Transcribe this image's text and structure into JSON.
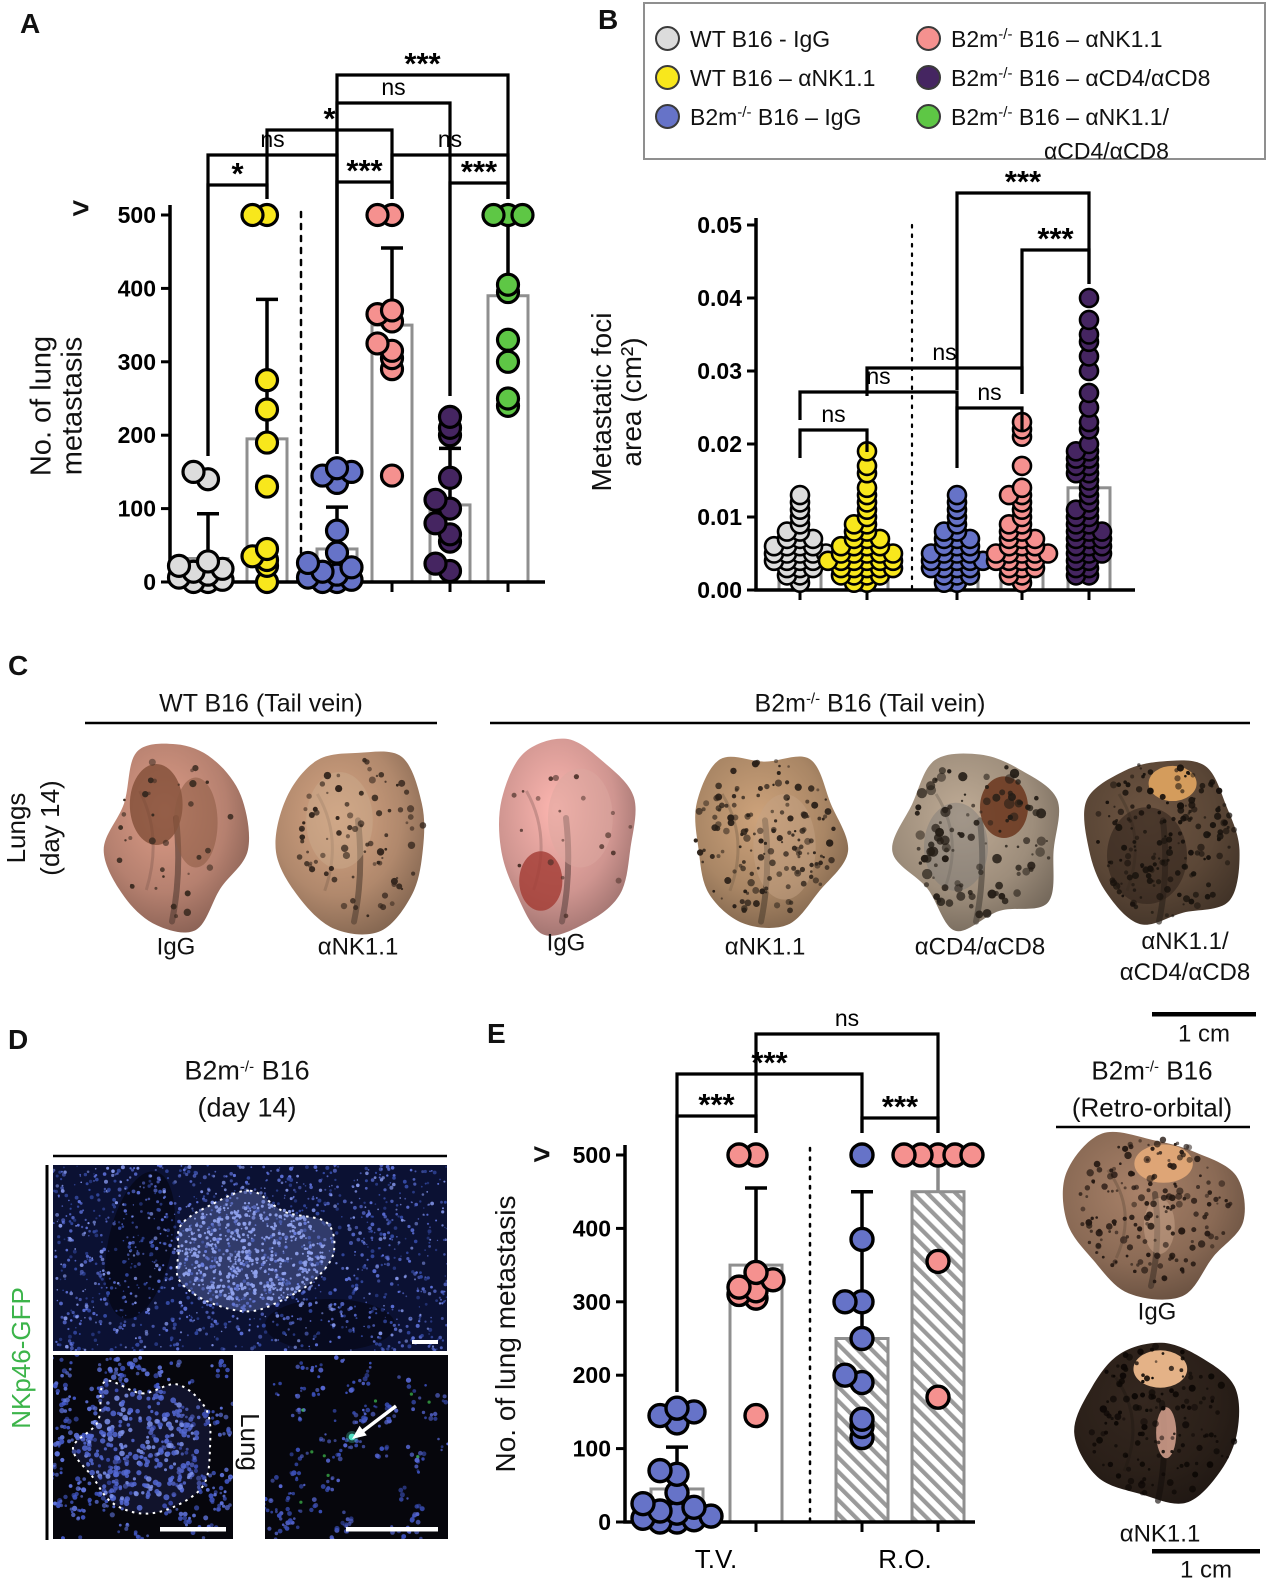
{
  "panels": {
    "a": "A",
    "b": "B",
    "c": "C",
    "d": "D",
    "e": "E"
  },
  "legend": {
    "items": [
      {
        "pre": "WT B16 - IgG",
        "sup": "",
        "post": "",
        "post2": "",
        "color": "#dcdcdc"
      },
      {
        "pre": "WT B16 – αNK1.1",
        "sup": "",
        "post": "",
        "post2": "",
        "color": "#f8e71c"
      },
      {
        "pre": "B2m",
        "sup": "-/-",
        "post": " B16 – IgG",
        "post2": "",
        "color": "#6673c8"
      },
      {
        "pre": "B2m",
        "sup": "-/-",
        "post": " B16 – αNK1.1",
        "post2": "",
        "color": "#f5918f"
      },
      {
        "pre": "B2m",
        "sup": "-/-",
        "post": " B16 – αCD4/αCD8",
        "post2": "",
        "color": "#452561"
      },
      {
        "pre": "B2m",
        "sup": "-/-",
        "post": " B16 – αNK1.1/",
        "post2": "αCD4/αCD8",
        "color": "#5ec745"
      }
    ]
  },
  "chart_data": [
    {
      "id": "A",
      "type": "scatter-bar",
      "ylabel": [
        "No. of lung",
        "metastasis"
      ],
      "over_symbol": ">",
      "ylim": [
        0,
        500
      ],
      "grid": false,
      "yticks": [
        {
          "v": 0,
          "label": "0"
        },
        {
          "v": 100,
          "label": "100"
        },
        {
          "v": 200,
          "label": "200"
        },
        {
          "v": 300,
          "label": "300"
        },
        {
          "v": 400,
          "label": "400"
        },
        {
          "v": 500,
          "label": "500"
        }
      ],
      "groups": [
        {
          "name": "WT B16 - IgG",
          "color": "#dcdcdc",
          "bar": 32,
          "whisker": 93,
          "points": [
            0,
            0,
            3,
            6,
            10,
            14,
            18,
            22,
            28,
            140,
            150
          ]
        },
        {
          "name": "WT B16 – αNK1.1",
          "color": "#f8e71c",
          "bar": 195,
          "whisker": 385,
          "points": [
            0,
            22,
            30,
            35,
            45,
            130,
            190,
            235,
            275,
            500,
            500
          ]
        },
        {
          "name": "B2m-/- B16 – IgG",
          "color": "#6673c8",
          "bar": 45,
          "whisker": 102,
          "points": [
            0,
            0,
            3,
            6,
            10,
            14,
            20,
            26,
            40,
            70,
            135,
            145,
            150,
            155
          ]
        },
        {
          "name": "B2m-/- B16 – αNK1.1",
          "color": "#f5918f",
          "bar": 350,
          "whisker": 455,
          "points": [
            145,
            290,
            305,
            315,
            325,
            355,
            365,
            370,
            500,
            500
          ]
        },
        {
          "name": "B2m-/- B16 – αCD4/αCD8",
          "color": "#452561",
          "bar": 105,
          "whisker": 182,
          "points": [
            15,
            25,
            55,
            65,
            80,
            100,
            112,
            142,
            200,
            210,
            225
          ]
        },
        {
          "name": "B2m-/- B16 – αNK1.1/αCD4/αCD8",
          "color": "#5ec745",
          "bar": 390,
          "whisker": 500,
          "points": [
            240,
            250,
            300,
            330,
            395,
            405,
            500,
            500,
            500
          ]
        }
      ],
      "comparisons": [
        {
          "a": 2,
          "b": 5,
          "label": "***"
        },
        {
          "a": 2,
          "b": 4,
          "label": "ns"
        },
        {
          "a": 1,
          "b": 3,
          "label": "*"
        },
        {
          "a": 0,
          "b": 2,
          "label": "ns"
        },
        {
          "a": 3,
          "b": 5,
          "label": "ns"
        },
        {
          "a": 0,
          "b": 1,
          "label": "*"
        },
        {
          "a": 2,
          "b": 3,
          "label": "***"
        },
        {
          "a": 4,
          "b": 5,
          "label": "***"
        }
      ]
    },
    {
      "id": "B",
      "type": "scatter-bar",
      "ylabel": [
        "Metastatic foci",
        "area (cm²)"
      ],
      "ylim": [
        0,
        0.05
      ],
      "grid": false,
      "yticks": [
        {
          "v": 0,
          "label": "0.00"
        },
        {
          "v": 0.01,
          "label": "0.01"
        },
        {
          "v": 0.02,
          "label": "0.02"
        },
        {
          "v": 0.03,
          "label": "0.03"
        },
        {
          "v": 0.04,
          "label": "0.04"
        },
        {
          "v": 0.05,
          "label": "0.05"
        }
      ],
      "groups": [
        {
          "name": "WT B16 - IgG",
          "color": "#dcdcdc",
          "bar": 0.0045,
          "whisker": null,
          "points": [
            0.001,
            0.002,
            0.002,
            0.003,
            0.003,
            0.003,
            0.004,
            0.004,
            0.004,
            0.004,
            0.005,
            0.005,
            0.005,
            0.005,
            0.005,
            0.006,
            0.006,
            0.006,
            0.006,
            0.007,
            0.007,
            0.007,
            0.008,
            0.008,
            0.009,
            0.01,
            0.011,
            0.012,
            0.013
          ]
        },
        {
          "name": "WT B16 – αNK1.1",
          "color": "#f8e71c",
          "bar": 0.004,
          "whisker": null,
          "points": [
            0.001,
            0.001,
            0.002,
            0.002,
            0.002,
            0.002,
            0.003,
            0.003,
            0.003,
            0.003,
            0.003,
            0.004,
            0.004,
            0.004,
            0.004,
            0.004,
            0.004,
            0.005,
            0.005,
            0.005,
            0.005,
            0.005,
            0.006,
            0.006,
            0.006,
            0.006,
            0.007,
            0.007,
            0.007,
            0.008,
            0.008,
            0.009,
            0.009,
            0.01,
            0.011,
            0.012,
            0.013,
            0.014,
            0.016,
            0.017,
            0.019
          ]
        },
        {
          "name": "B2m-/- B16 – IgG",
          "color": "#6673c8",
          "bar": 0.0035,
          "whisker": null,
          "points": [
            0.001,
            0.001,
            0.002,
            0.002,
            0.002,
            0.003,
            0.003,
            0.003,
            0.003,
            0.004,
            0.004,
            0.004,
            0.004,
            0.004,
            0.005,
            0.005,
            0.005,
            0.005,
            0.006,
            0.006,
            0.006,
            0.007,
            0.007,
            0.007,
            0.008,
            0.008,
            0.009,
            0.01,
            0.011,
            0.012,
            0.013
          ]
        },
        {
          "name": "B2m-/- B16 – αNK1.1",
          "color": "#f5918f",
          "bar": 0.0075,
          "whisker": null,
          "points": [
            0.001,
            0.002,
            0.002,
            0.003,
            0.003,
            0.003,
            0.004,
            0.004,
            0.004,
            0.004,
            0.005,
            0.005,
            0.005,
            0.005,
            0.005,
            0.006,
            0.006,
            0.006,
            0.007,
            0.007,
            0.007,
            0.008,
            0.008,
            0.009,
            0.009,
            0.01,
            0.011,
            0.012,
            0.013,
            0.013,
            0.014,
            0.017,
            0.021,
            0.022,
            0.023
          ]
        },
        {
          "name": "B2m-/- B16 – αCD4/αCD8",
          "color": "#452561",
          "bar": 0.014,
          "whisker": null,
          "points": [
            0.002,
            0.002,
            0.003,
            0.003,
            0.004,
            0.004,
            0.005,
            0.005,
            0.005,
            0.006,
            0.006,
            0.006,
            0.007,
            0.007,
            0.007,
            0.008,
            0.008,
            0.008,
            0.009,
            0.009,
            0.01,
            0.01,
            0.011,
            0.011,
            0.012,
            0.013,
            0.014,
            0.015,
            0.016,
            0.016,
            0.017,
            0.017,
            0.018,
            0.018,
            0.019,
            0.019,
            0.02,
            0.022,
            0.023,
            0.025,
            0.027,
            0.03,
            0.032,
            0.034,
            0.035,
            0.037,
            0.04
          ]
        }
      ],
      "comparisons": [
        {
          "a": 2,
          "b": 4,
          "label": "***"
        },
        {
          "a": 3,
          "b": 4,
          "label": "***"
        },
        {
          "a": 1,
          "b": 3,
          "label": "ns"
        },
        {
          "a": 0,
          "b": 2,
          "label": "ns"
        },
        {
          "a": 2,
          "b": 3,
          "label": "ns"
        },
        {
          "a": 0,
          "b": 1,
          "label": "ns"
        }
      ]
    },
    {
      "id": "E",
      "type": "scatter-bar",
      "ylabel": [
        "No. of lung metastasis"
      ],
      "over_symbol": ">",
      "ylim": [
        0,
        500
      ],
      "grid": false,
      "xcats": [
        "T.V.",
        "R.O."
      ],
      "yticks": [
        {
          "v": 0,
          "label": "0"
        },
        {
          "v": 100,
          "label": "100"
        },
        {
          "v": 200,
          "label": "200"
        },
        {
          "v": 300,
          "label": "300"
        },
        {
          "v": 400,
          "label": "400"
        },
        {
          "v": 500,
          "label": "500"
        }
      ],
      "groups": [
        {
          "name": "B2m-/- B16 – IgG (T.V.)",
          "color": "#6673c8",
          "hatch": false,
          "bar": 45,
          "whisker": 102,
          "points": [
            0,
            0,
            3,
            5,
            8,
            12,
            15,
            20,
            25,
            40,
            65,
            70,
            135,
            145,
            150,
            155
          ]
        },
        {
          "name": "B2m-/- B16 – αNK1.1 (T.V.)",
          "color": "#f5918f",
          "hatch": false,
          "bar": 350,
          "whisker": 455,
          "points": [
            145,
            305,
            310,
            315,
            320,
            330,
            340,
            500,
            500
          ]
        },
        {
          "name": "B2m-/- B16 – IgG (R.O.)",
          "color": "#6673c8",
          "hatch": true,
          "bar": 250,
          "whisker": 450,
          "points": [
            115,
            130,
            140,
            190,
            200,
            250,
            300,
            300,
            385,
            500
          ]
        },
        {
          "name": "B2m-/- B16 – αNK1.1 (R.O.)",
          "color": "#f5918f",
          "hatch": true,
          "bar": 450,
          "whisker": 490,
          "whisker_color": "#8a8a8a",
          "points": [
            170,
            355,
            500,
            500,
            500,
            500,
            500
          ]
        }
      ],
      "comparisons": [
        {
          "a": 1,
          "b": 3,
          "label": "ns"
        },
        {
          "a": 0,
          "b": 2,
          "label": "***"
        },
        {
          "a": 0,
          "b": 1,
          "label": "***"
        },
        {
          "a": 2,
          "b": 3,
          "label": "***"
        }
      ]
    }
  ],
  "panel_c": {
    "header_wt": "WT B16 (Tail vein)",
    "header_b2m": {
      "pre": "B2m",
      "sup": "-/-",
      "post": " B16 (Tail vein)"
    },
    "side_label": [
      "Lungs",
      "(day 14)"
    ],
    "scalebar": "1 cm",
    "photos": [
      {
        "label": "IgG",
        "label2": "",
        "base": "#b5806f",
        "spots": 35,
        "spot_color": "#3a2a20"
      },
      {
        "label": "αNK1.1",
        "label2": "",
        "base": "#b0886c",
        "spots": 85,
        "spot_color": "#33251c"
      },
      {
        "label": "IgG",
        "label2": "",
        "base": "#cf9590",
        "spots": 20,
        "spot_color": "#4a3028"
      },
      {
        "label": "αNK1.1",
        "label2": "",
        "base": "#a98665",
        "spots": 150,
        "spot_color": "#2a2018"
      },
      {
        "label": "αCD4/αCD8",
        "label2": "",
        "base": "#9d8d7b",
        "spots": 110,
        "spot_color": "#241d16"
      },
      {
        "label": "αNK1.1/",
        "label2": "αCD4/αCD8",
        "base": "#5a4636",
        "spots": 170,
        "spot_color": "#17110c"
      }
    ]
  },
  "panel_d": {
    "title": {
      "pre": "B2m",
      "sup": "-/-",
      "post": " B16"
    },
    "title2": "(day 14)",
    "marker": "NKp46-GFP",
    "marker_color": "#3cb44a",
    "lung_label": "Lung",
    "bg": "#0b1133",
    "nuclei": "#5b6fd6",
    "nuclei_bright": "#93a5f0",
    "dark_bg": "#06060c"
  },
  "panel_e_right": {
    "title": {
      "pre": "B2m",
      "sup": "-/-",
      "post": " B16"
    },
    "title2": "(Retro-orbital)",
    "scalebar": "1 cm",
    "photos": [
      {
        "label": "IgG",
        "base": "#8a6a55",
        "spots": 170,
        "spot_color": "#241812",
        "accent": "#e2a877"
      },
      {
        "label": "αNK1.1",
        "base": "#2b2019",
        "spots": 140,
        "spot_color": "#0d0805",
        "accent": "#eebb8d"
      }
    ]
  }
}
